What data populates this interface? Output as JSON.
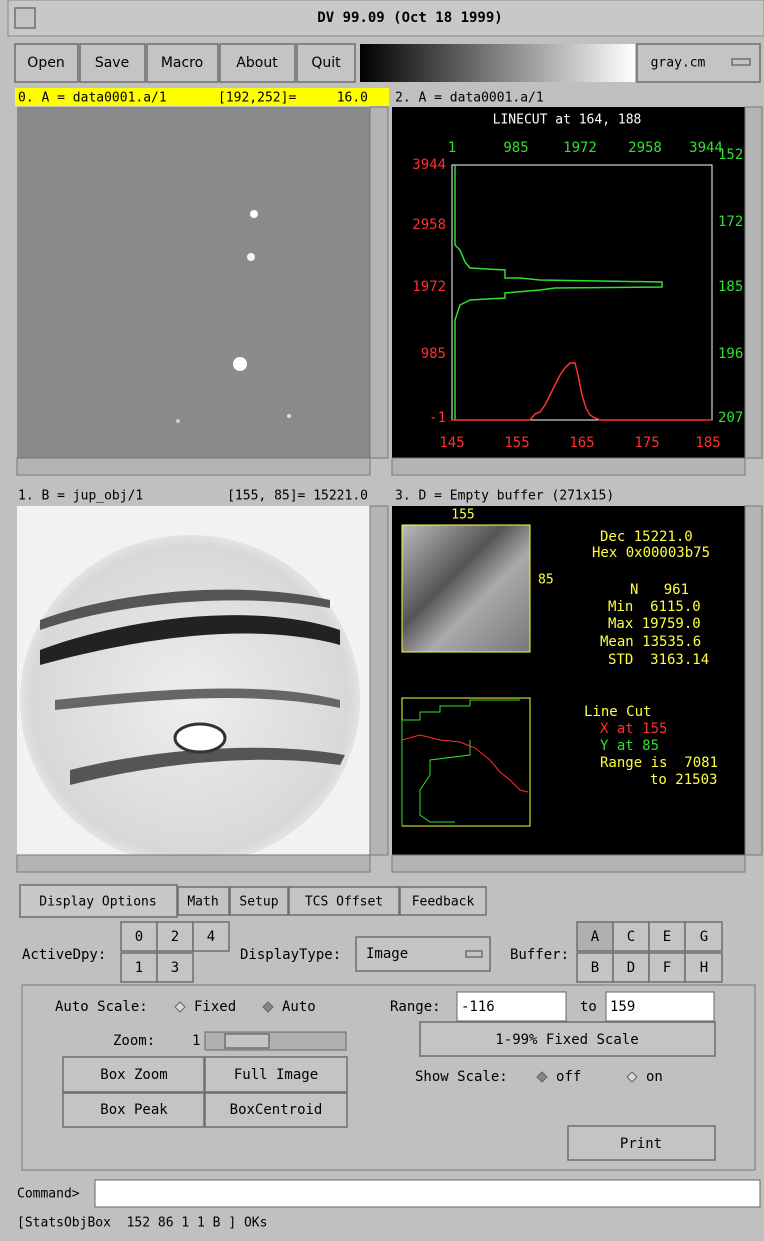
{
  "window": {
    "title": "DV 99.09 (Oct 18 1999)"
  },
  "menu": {
    "buttons": [
      "Open",
      "Save",
      "Macro",
      "About",
      "Quit"
    ],
    "colormap": "gray.cm"
  },
  "panels": [
    {
      "header": "0. A = data0001.a/1",
      "coords": "[192,252]=",
      "value": "16.0"
    },
    {
      "header": "2. A = data0001.a/1",
      "linecut": {
        "title": "LINECUT at 164, 188",
        "left_labels": [
          "3944",
          "2958",
          "1972",
          "985",
          "-1"
        ],
        "top_labels": [
          "1",
          "985",
          "1972",
          "2958",
          "3944"
        ],
        "right_labels": [
          "152",
          "172",
          "185",
          "196",
          "207"
        ],
        "bottom_labels": [
          "145",
          "155",
          "165",
          "175",
          "185"
        ]
      }
    },
    {
      "header": "1. B = jup_obj/1",
      "coords": "[155, 85]= 15221.0"
    },
    {
      "header": "3. D = Empty buffer (271x15)",
      "x_label": "155",
      "y_label": "85",
      "stats": [
        "Dec 15221.0",
        "Hex 0x00003b75",
        "N   961",
        "Min  6115.0",
        "Max 19759.0",
        "Mean 13535.6",
        "STD  3163.14"
      ],
      "line_cut": [
        "Line Cut",
        "X at 155",
        "Y at 85",
        "Range is  7081",
        "to 21503"
      ]
    }
  ],
  "tabs": [
    "Display Options",
    "Math",
    "Setup",
    "TCS Offset",
    "Feedback"
  ],
  "controls": {
    "active_dpy": {
      "label": "ActiveDpy:",
      "buttons": [
        "0",
        "2",
        "4",
        "1",
        "3"
      ]
    },
    "display_type": {
      "label": "DisplayType:",
      "value": "Image"
    },
    "buffer": {
      "label": "Buffer:",
      "buttons": [
        "A",
        "C",
        "E",
        "G",
        "B",
        "D",
        "F",
        "H"
      ]
    },
    "auto_scale": {
      "label": "Auto Scale:",
      "options": [
        "Fixed",
        "Auto"
      ]
    },
    "range": {
      "label": "Range:",
      "from": "-116",
      "to_label": "to",
      "to": "159"
    },
    "zoom": {
      "label": "Zoom:",
      "value": "1"
    },
    "fixed_scale": "1-99% Fixed Scale",
    "buttons": [
      "Box Zoom",
      "Full Image",
      "Box Peak",
      "BoxCentroid"
    ],
    "show_scale": {
      "label": "Show Scale:",
      "options": [
        "off",
        "on"
      ]
    },
    "print": "Print"
  },
  "command": {
    "label": "Command>"
  },
  "status": "[StatsObjBox  152 86 1 1 B ] OKs"
}
